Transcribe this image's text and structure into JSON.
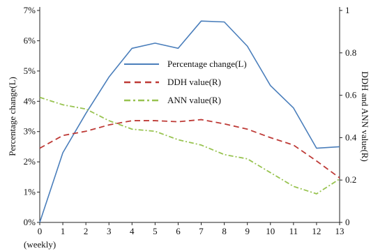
{
  "chart_data": {
    "type": "line",
    "x": [
      0,
      1,
      2,
      3,
      4,
      5,
      6,
      7,
      8,
      9,
      10,
      11,
      12,
      13
    ],
    "x_tick_labels": [
      "0",
      "1",
      "2",
      "3",
      "4",
      "5",
      "6",
      "7",
      "8",
      "9",
      "10",
      "11",
      "12",
      "13"
    ],
    "xlabel": "(weekly)",
    "ylabel_left": "Percentage change(L)",
    "ylabel_right": "DDH and ANN value(R)",
    "ylim_left": [
      0,
      7
    ],
    "ylim_right": [
      0,
      1
    ],
    "left_tick_labels": [
      "0%",
      "1%",
      "2%",
      "3%",
      "4%",
      "5%",
      "6%",
      "7%"
    ],
    "right_tick_labels": [
      "0",
      "0.2",
      "0.4",
      "0.6",
      "0.8",
      "1"
    ],
    "legend_position": "upper-middle",
    "series": [
      {
        "name": "Percentage change(L)",
        "axis": "left",
        "style": "solid",
        "color": "#4a7ebb",
        "values": [
          0.0,
          2.3,
          3.6,
          4.8,
          5.75,
          5.92,
          5.75,
          6.65,
          6.62,
          5.82,
          4.52,
          3.78,
          2.45,
          2.5
        ]
      },
      {
        "name": "DDH value(R)",
        "axis": "right",
        "style": "dashed",
        "color": "#be3a36",
        "values": [
          0.35,
          0.41,
          0.43,
          0.46,
          0.48,
          0.48,
          0.475,
          0.485,
          0.465,
          0.44,
          0.4,
          0.365,
          0.29,
          0.21
        ]
      },
      {
        "name": "ANN value(R)",
        "axis": "right",
        "style": "dash-dot",
        "color": "#98c350",
        "values": [
          0.59,
          0.555,
          0.535,
          0.48,
          0.44,
          0.43,
          0.39,
          0.365,
          0.32,
          0.3,
          0.235,
          0.17,
          0.135,
          0.205
        ]
      }
    ]
  }
}
